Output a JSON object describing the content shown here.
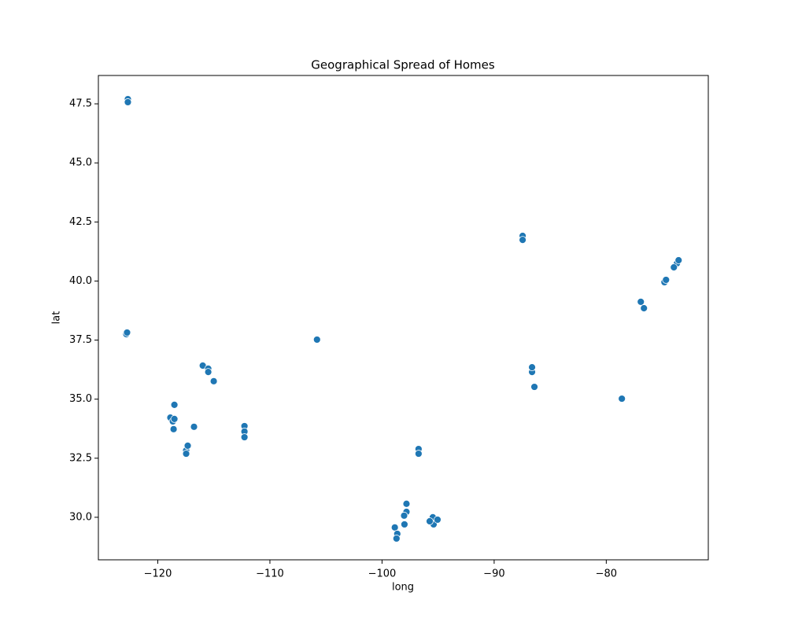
{
  "chart_data": {
    "type": "scatter",
    "title": "Geographical Spread of Homes",
    "x_label": "long",
    "y_label": "lat",
    "x": [
      -122.67,
      -122.67,
      -122.81,
      -122.74,
      -105.8,
      -118.88,
      -118.66,
      -118.52,
      -118.59,
      -118.52,
      -117.47,
      -117.47,
      -117.33,
      -116.77,
      -115.99,
      -115.5,
      -115.5,
      -115.01,
      -112.27,
      -112.27,
      -112.27,
      -97.82,
      -97.82,
      -98.03,
      -98.86,
      -98.64,
      -98.71,
      -98.0,
      -95.47,
      -95.4,
      -95.05,
      -95.75,
      -96.74,
      -96.74,
      -87.46,
      -87.46,
      -86.62,
      -86.62,
      -86.41,
      -78.61,
      -76.92,
      -76.64,
      -74.81,
      -74.67,
      -73.69,
      -73.55,
      -73.97
    ],
    "y": [
      47.7,
      47.57,
      37.75,
      37.82,
      37.52,
      34.22,
      34.06,
      34.16,
      33.73,
      34.76,
      32.83,
      32.69,
      33.03,
      33.83,
      36.42,
      36.29,
      36.15,
      35.76,
      33.86,
      33.63,
      33.39,
      30.57,
      30.23,
      30.07,
      29.57,
      29.3,
      29.1,
      29.7,
      30.0,
      29.7,
      29.9,
      29.83,
      32.89,
      32.69,
      41.91,
      41.74,
      36.15,
      36.35,
      35.52,
      35.02,
      39.12,
      38.85,
      39.95,
      40.05,
      40.75,
      40.88,
      40.58
    ],
    "color": "#1f77b4",
    "xlim": [
      -125.3,
      -70.9
    ],
    "ylim": [
      28.2,
      48.7
    ],
    "xticks": [
      {
        "value": -120,
        "label": "−120"
      },
      {
        "value": -110,
        "label": "−110"
      },
      {
        "value": -100,
        "label": "−100"
      },
      {
        "value": -90,
        "label": "−90"
      },
      {
        "value": -80,
        "label": "−80"
      }
    ],
    "yticks": [
      {
        "value": 30,
        "label": "30.0"
      },
      {
        "value": 32.5,
        "label": "32.5"
      },
      {
        "value": 35,
        "label": "35.0"
      },
      {
        "value": 37.5,
        "label": "37.5"
      },
      {
        "value": 40,
        "label": "40.0"
      },
      {
        "value": 42.5,
        "label": "42.5"
      },
      {
        "value": 45,
        "label": "45.0"
      },
      {
        "value": 47.5,
        "label": "47.5"
      }
    ]
  }
}
